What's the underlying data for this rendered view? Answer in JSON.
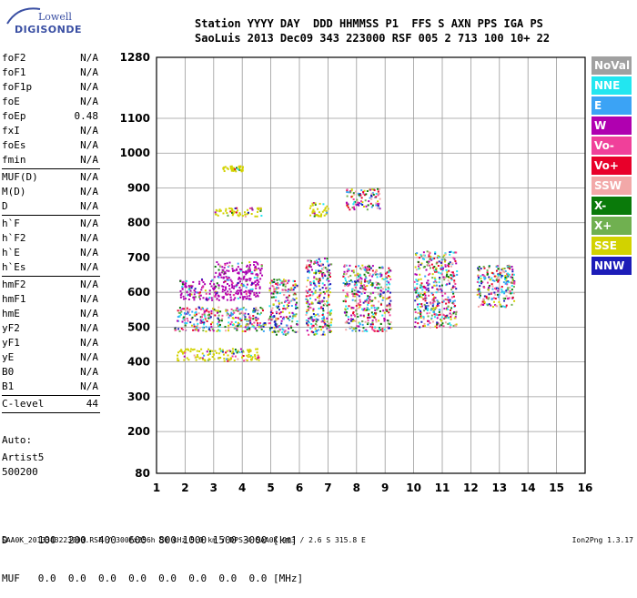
{
  "logo": {
    "line1": "Lowell",
    "line2": "DIGISONDE"
  },
  "header": {
    "line1": "Station YYYY DAY  DDD HHMMSS P1  FFS S AXN PPS IGA PS",
    "line2": "SaoLuis 2013 Dec09 343 223000 RSF 005 2 713 100 10+ 22"
  },
  "params": {
    "group1": [
      {
        "name": "foF2",
        "value": "N/A"
      },
      {
        "name": "foF1",
        "value": "N/A"
      },
      {
        "name": "foF1p",
        "value": "N/A"
      },
      {
        "name": "foE",
        "value": "N/A"
      },
      {
        "name": "foEp",
        "value": "0.48"
      },
      {
        "name": "fxI",
        "value": "N/A"
      },
      {
        "name": "foEs",
        "value": "N/A"
      },
      {
        "name": "fmin",
        "value": "N/A"
      }
    ],
    "group2": [
      {
        "name": "MUF(D)",
        "value": "N/A"
      },
      {
        "name": "M(D)",
        "value": "N/A"
      },
      {
        "name": "D",
        "value": "N/A"
      }
    ],
    "group3": [
      {
        "name": "h`F",
        "value": "N/A"
      },
      {
        "name": "h`F2",
        "value": "N/A"
      },
      {
        "name": "h`E",
        "value": "N/A"
      },
      {
        "name": "h`Es",
        "value": "N/A"
      }
    ],
    "group4": [
      {
        "name": "hmF2",
        "value": "N/A"
      },
      {
        "name": "hmF1",
        "value": "N/A"
      },
      {
        "name": "hmE",
        "value": "N/A"
      },
      {
        "name": "yF2",
        "value": "N/A"
      },
      {
        "name": "yF1",
        "value": "N/A"
      },
      {
        "name": "yE",
        "value": "N/A"
      },
      {
        "name": "B0",
        "value": "N/A"
      },
      {
        "name": "B1",
        "value": "N/A"
      }
    ],
    "clevel": {
      "name": "C-level",
      "value": "44"
    }
  },
  "auto": {
    "label": "Auto:",
    "artist": "Artist5",
    "version": "500200"
  },
  "legend": [
    {
      "label": "NoVal",
      "color": "#a0a0a0"
    },
    {
      "label": "NNE",
      "color": "#22e6f0"
    },
    {
      "label": "E",
      "color": "#3ba3f5"
    },
    {
      "label": "W",
      "color": "#b000b0"
    },
    {
      "label": "Vo-",
      "color": "#f0409a"
    },
    {
      "label": "Vo+",
      "color": "#e8002a"
    },
    {
      "label": "SSW",
      "color": "#f2a8a8"
    },
    {
      "label": "X-",
      "color": "#0a7a0a"
    },
    {
      "label": "X+",
      "color": "#70b050"
    },
    {
      "label": "SSE",
      "color": "#d2d200"
    },
    {
      "label": "NNW",
      "color": "#1c1cb8"
    }
  ],
  "table": {
    "line1": "D     100  200  400  600  800 1000 1500 3000 [km]",
    "line2": "MUF   0.0  0.0  0.0  0.0  0.0  0.0  0.0  0.0 [MHz]"
  },
  "footer": {
    "text": "SAA0K_2013343223000.RSF / 300fx256h 50 kHz 5.0 km / DPS-4 SAA0K 903 / 2.6 S 315.8 E",
    "version": "Ion2Png 1.3.17"
  },
  "chart_data": {
    "type": "scatter",
    "title": "",
    "xlabel": "",
    "ylabel": "",
    "xlim": [
      1,
      16
    ],
    "ylim": [
      80,
      1280
    ],
    "xticks": [
      1,
      2,
      3,
      4,
      5,
      6,
      7,
      8,
      9,
      10,
      11,
      12,
      13,
      14,
      15,
      16
    ],
    "yticks": [
      80,
      200,
      300,
      400,
      500,
      600,
      700,
      800,
      900,
      1000,
      1100,
      1280
    ],
    "grid": true,
    "clusters": [
      {
        "x": [
          1.6,
          4.8
        ],
        "y": [
          490,
          520
        ],
        "series": "mixed"
      },
      {
        "x": [
          1.7,
          4.7
        ],
        "y": [
          520,
          560
        ],
        "series": "mixed"
      },
      {
        "x": [
          1.8,
          4.6
        ],
        "y": [
          580,
          640
        ],
        "series": "W"
      },
      {
        "x": [
          3.0,
          4.7
        ],
        "y": [
          640,
          690
        ],
        "series": "W"
      },
      {
        "x": [
          1.7,
          4.6
        ],
        "y": [
          405,
          440
        ],
        "series": "SSE"
      },
      {
        "x": [
          3.0,
          4.7
        ],
        "y": [
          820,
          845
        ],
        "series": "SSE"
      },
      {
        "x": [
          3.3,
          4.0
        ],
        "y": [
          950,
          965
        ],
        "series": "SSE"
      },
      {
        "x": [
          4.9,
          5.9
        ],
        "y": [
          480,
          640
        ],
        "series": "mixed"
      },
      {
        "x": [
          6.2,
          7.1
        ],
        "y": [
          480,
          700
        ],
        "series": "mixed"
      },
      {
        "x": [
          6.3,
          7.0
        ],
        "y": [
          820,
          860
        ],
        "series": "SSE"
      },
      {
        "x": [
          7.5,
          9.2
        ],
        "y": [
          490,
          680
        ],
        "series": "mixed"
      },
      {
        "x": [
          7.6,
          8.8
        ],
        "y": [
          840,
          900
        ],
        "series": "mixed"
      },
      {
        "x": [
          10.0,
          11.5
        ],
        "y": [
          500,
          720
        ],
        "series": "mixed"
      },
      {
        "x": [
          12.2,
          13.5
        ],
        "y": [
          560,
          680
        ],
        "series": "mixed"
      }
    ]
  }
}
